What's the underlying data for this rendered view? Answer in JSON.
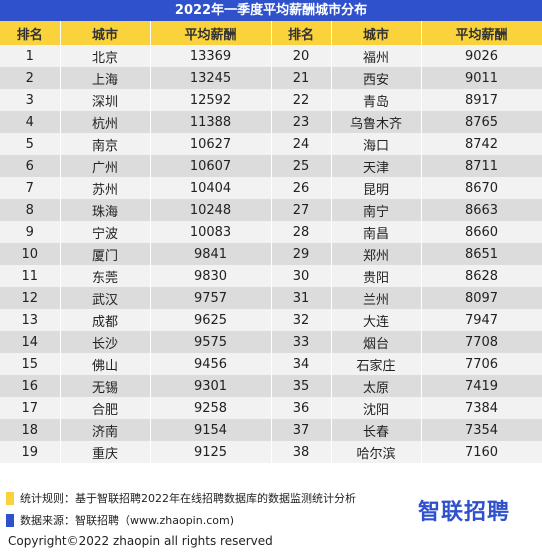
{
  "title": "2022年一季度平均薪酬城市分布",
  "headers": [
    "排名",
    "城市",
    "平均薪酬",
    "排名",
    "城市",
    "平均薪酬"
  ],
  "rows": [
    [
      "1",
      "北京",
      "13369",
      "20",
      "福州",
      "9026"
    ],
    [
      "2",
      "上海",
      "13245",
      "21",
      "西安",
      "9011"
    ],
    [
      "3",
      "深圳",
      "12592",
      "22",
      "青岛",
      "8917"
    ],
    [
      "4",
      "杭州",
      "11388",
      "23",
      "乌鲁木齐",
      "8765"
    ],
    [
      "5",
      "南京",
      "10627",
      "24",
      "海口",
      "8742"
    ],
    [
      "6",
      "广州",
      "10607",
      "25",
      "天津",
      "8711"
    ],
    [
      "7",
      "苏州",
      "10404",
      "26",
      "昆明",
      "8670"
    ],
    [
      "8",
      "珠海",
      "10248",
      "27",
      "南宁",
      "8663"
    ],
    [
      "9",
      "宁波",
      "10083",
      "28",
      "南昌",
      "8660"
    ],
    [
      "10",
      "厦门",
      "9841",
      "29",
      "郑州",
      "8651"
    ],
    [
      "11",
      "东莞",
      "9830",
      "30",
      "贵阳",
      "8628"
    ],
    [
      "12",
      "武汉",
      "9757",
      "31",
      "兰州",
      "8097"
    ],
    [
      "13",
      "成都",
      "9625",
      "32",
      "大连",
      "7947"
    ],
    [
      "14",
      "长沙",
      "9575",
      "33",
      "烟台",
      "7708"
    ],
    [
      "15",
      "佛山",
      "9456",
      "34",
      "石家庄",
      "7706"
    ],
    [
      "16",
      "无锡",
      "9301",
      "35",
      "太原",
      "7419"
    ],
    [
      "17",
      "合肥",
      "9258",
      "36",
      "沈阳",
      "7384"
    ],
    [
      "18",
      "济南",
      "9154",
      "37",
      "长春",
      "7354"
    ],
    [
      "19",
      "重庆",
      "9125",
      "38",
      "哈尔滨",
      "7160"
    ]
  ],
  "footer": {
    "rule_note": "统计规则：基于智联招聘2022年在线招聘数据库的数据监测统计分析",
    "source_note": "数据来源：智联招聘（www.zhaopin.com)",
    "logo_text": "智联招聘",
    "copyright": "Copyright©2022 zhaopin all rights reserved"
  },
  "colors": {
    "title_bg": "#2f52cc",
    "header_bg": "#f9d23c",
    "rule_swatch": "#f9d23c",
    "source_swatch": "#2f52cc",
    "logo": "#2f52cc"
  }
}
